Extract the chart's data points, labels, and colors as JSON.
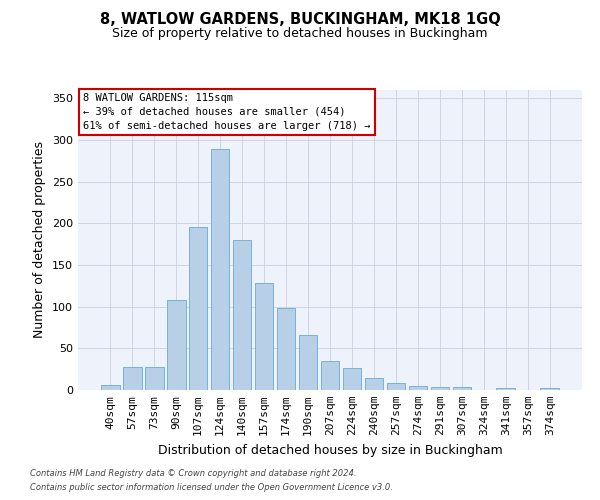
{
  "title": "8, WATLOW GARDENS, BUCKINGHAM, MK18 1GQ",
  "subtitle": "Size of property relative to detached houses in Buckingham",
  "xlabel": "Distribution of detached houses by size in Buckingham",
  "ylabel": "Number of detached properties",
  "categories": [
    "40sqm",
    "57sqm",
    "73sqm",
    "90sqm",
    "107sqm",
    "124sqm",
    "140sqm",
    "157sqm",
    "174sqm",
    "190sqm",
    "207sqm",
    "224sqm",
    "240sqm",
    "257sqm",
    "274sqm",
    "291sqm",
    "307sqm",
    "324sqm",
    "341sqm",
    "357sqm",
    "374sqm"
  ],
  "values": [
    6,
    28,
    28,
    108,
    196,
    289,
    180,
    128,
    98,
    66,
    35,
    26,
    15,
    8,
    5,
    4,
    4,
    0,
    2,
    0,
    3
  ],
  "bar_color": "#b8cfe8",
  "bar_edge_color": "#6aaad4",
  "background_color": "#eef2fb",
  "annotation_text": "8 WATLOW GARDENS: 115sqm\n← 39% of detached houses are smaller (454)\n61% of semi-detached houses are larger (718) →",
  "annotation_box_color": "#ffffff",
  "annotation_box_edge": "#cc0000",
  "footer_line1": "Contains HM Land Registry data © Crown copyright and database right 2024.",
  "footer_line2": "Contains public sector information licensed under the Open Government Licence v3.0.",
  "ylim": [
    0,
    360
  ],
  "yticks": [
    0,
    50,
    100,
    150,
    200,
    250,
    300,
    350
  ],
  "title_fontsize": 10.5,
  "subtitle_fontsize": 9,
  "xlabel_fontsize": 9,
  "ylabel_fontsize": 9,
  "tick_fontsize": 8,
  "footer_fontsize": 6,
  "annotation_fontsize": 7.5
}
